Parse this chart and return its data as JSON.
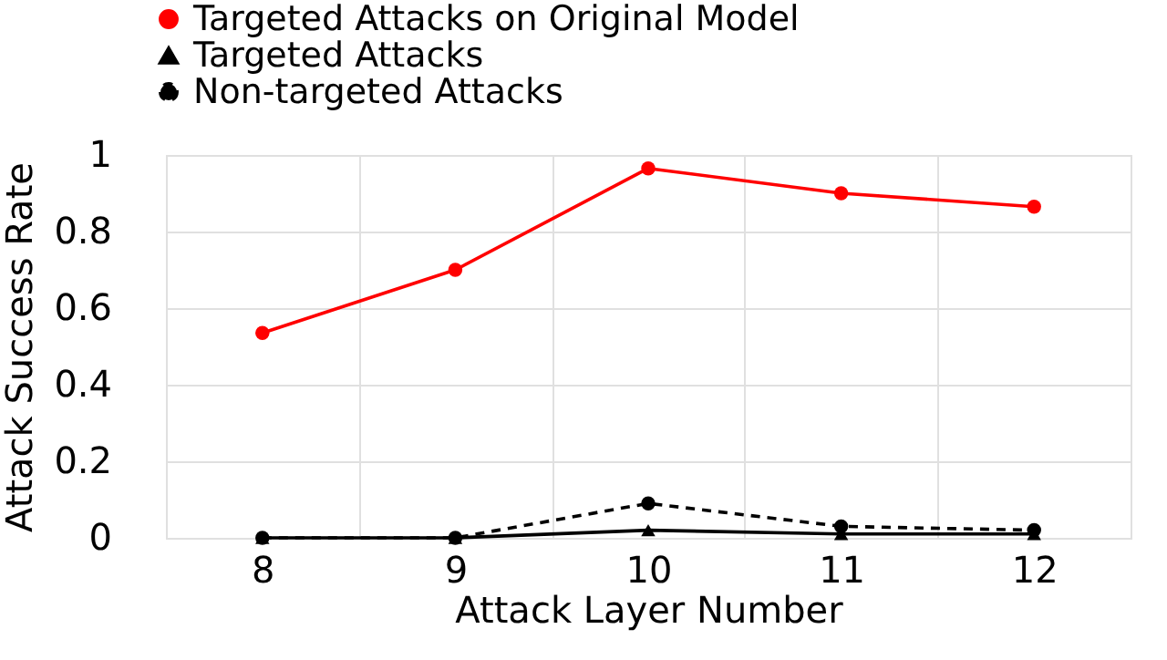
{
  "chart_data": {
    "type": "line",
    "xlabel": "Attack Layer Number",
    "ylabel": "Attack Success Rate",
    "categories": [
      "8",
      "9",
      "10",
      "11",
      "12"
    ],
    "series": [
      {
        "name": "Targeted Attacks on Original Model",
        "color": "#ff0000",
        "marker": "circle",
        "line_style": "solid",
        "values": [
          0.535,
          0.7,
          0.965,
          0.9,
          0.865
        ]
      },
      {
        "name": "Targeted Attacks",
        "color": "#000000",
        "marker": "triangle",
        "line_style": "solid",
        "values": [
          0,
          0,
          0.02,
          0.01,
          0.01
        ]
      },
      {
        "name": "Non-targeted Attacks",
        "color": "#000000",
        "marker": "circle",
        "line_style": "dashed",
        "values": [
          0,
          0,
          0.09,
          0.03,
          0.02
        ]
      }
    ],
    "ylim": [
      0,
      1
    ],
    "yticks": [
      0,
      0.2,
      0.4,
      0.6,
      0.8,
      1
    ],
    "grid": true,
    "legend": "top left"
  }
}
